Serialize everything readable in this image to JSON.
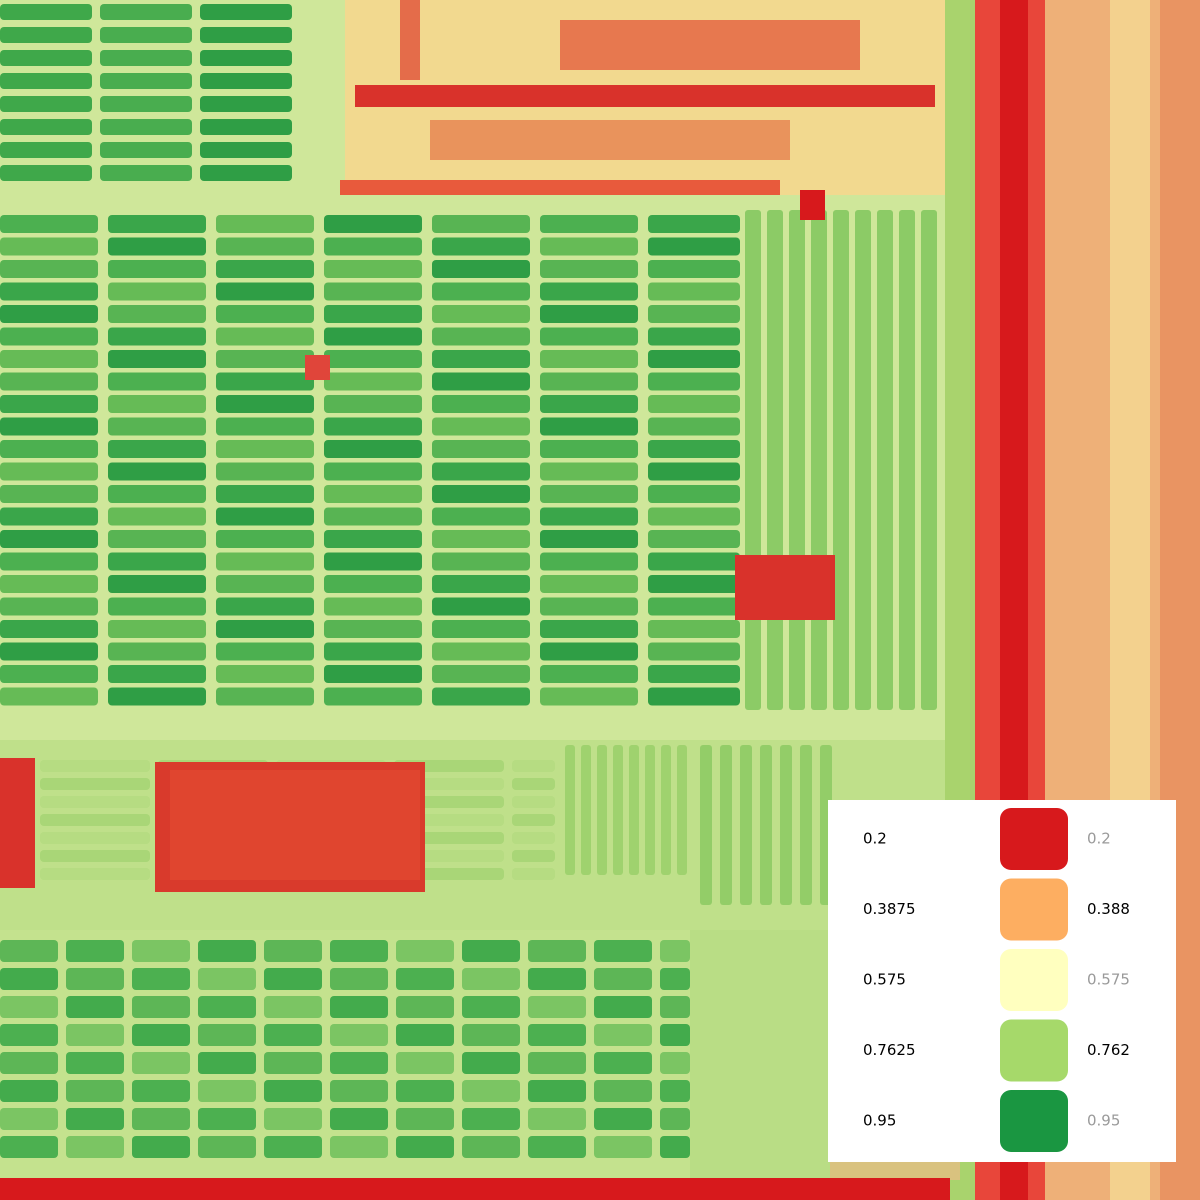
{
  "legend": {
    "rows": [
      {
        "value": "0.2",
        "color": "#d7191c",
        "label": "0.2"
      },
      {
        "value": "0.3875",
        "color": "#fdae61",
        "label": "0.388"
      },
      {
        "value": "0.575",
        "color": "#ffffbf",
        "label": "0.575"
      },
      {
        "value": "0.7625",
        "color": "#a6d96a",
        "label": "0.762"
      },
      {
        "value": "0.95",
        "color": "#1a9641",
        "label": "0.95"
      }
    ]
  }
}
